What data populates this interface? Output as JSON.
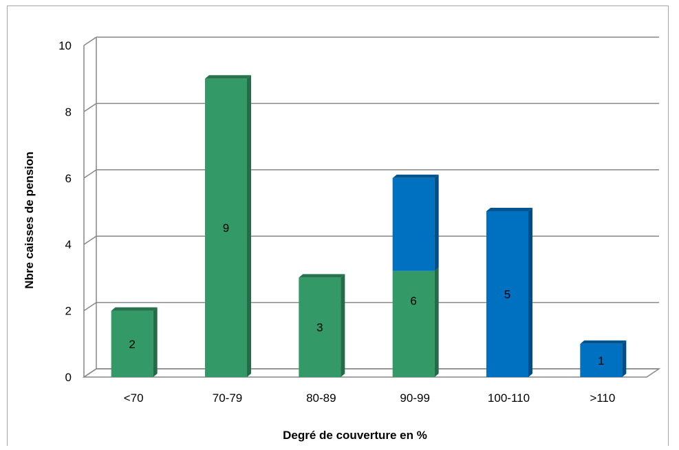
{
  "chart_data": {
    "type": "bar",
    "stacked": true,
    "title": "",
    "xlabel": "Degré de couverture en %",
    "ylabel": "Nbre caisses de pension",
    "categories": [
      "<70",
      "70-79",
      "80-89",
      "90-99",
      "100-110",
      ">110"
    ],
    "ylim": [
      0,
      10
    ],
    "yticks": [
      0,
      2,
      4,
      6,
      8,
      10
    ],
    "grid": true,
    "legend": "none",
    "series": [
      {
        "color": "#339966",
        "values": [
          2,
          9,
          3,
          3.2,
          0,
          0
        ]
      },
      {
        "color": "#0070c0",
        "values": [
          0,
          0,
          0,
          2.8,
          5,
          1
        ]
      }
    ],
    "data_labels": [
      "2",
      "9",
      "3",
      "6",
      "5",
      "1"
    ]
  }
}
